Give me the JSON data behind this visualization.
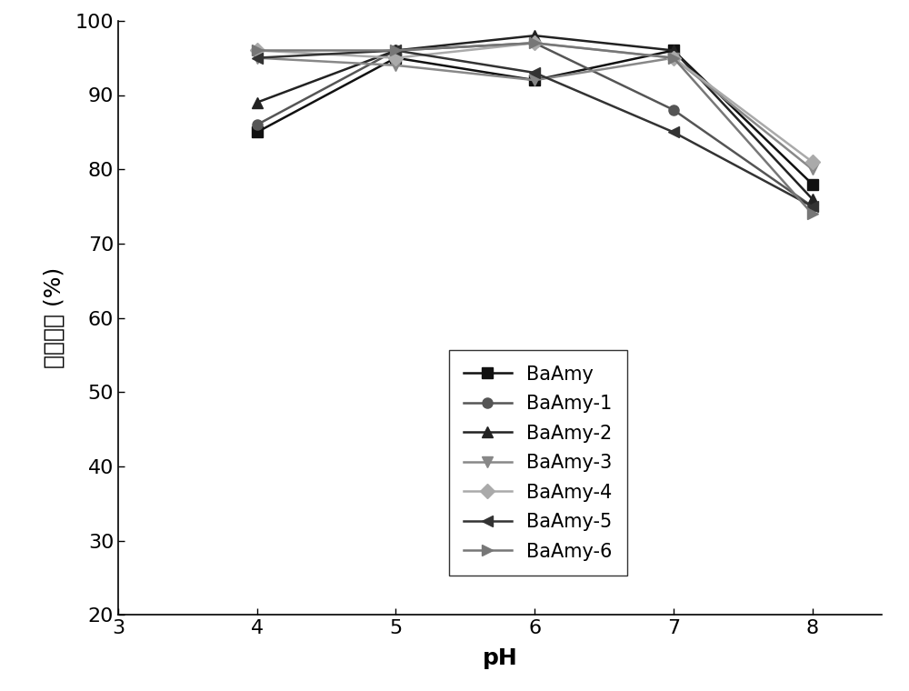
{
  "x": [
    4,
    5,
    6,
    7,
    8
  ],
  "series": {
    "BaAmy": [
      85,
      95,
      92,
      96,
      78
    ],
    "BaAmy-1": [
      86,
      96,
      97,
      88,
      75
    ],
    "BaAmy-2": [
      89,
      96,
      98,
      96,
      76
    ],
    "BaAmy-3": [
      95,
      94,
      92,
      95,
      80
    ],
    "BaAmy-4": [
      96,
      95,
      97,
      95,
      81
    ],
    "BaAmy-5": [
      95,
      96,
      93,
      85,
      75
    ],
    "BaAmy-6": [
      96,
      96,
      97,
      95,
      74
    ]
  },
  "markers": [
    "s",
    "o",
    "^",
    "v",
    "D",
    "<",
    ">"
  ],
  "colors": [
    "#111111",
    "#555555",
    "#222222",
    "#888888",
    "#aaaaaa",
    "#333333",
    "#777777"
  ],
  "xlabel": "pH",
  "ylabel": "相對酵活 (%)",
  "ylim": [
    20,
    100
  ],
  "yticks": [
    20,
    30,
    40,
    50,
    60,
    70,
    80,
    90,
    100
  ],
  "xlim": [
    3,
    8.5
  ],
  "xticks": [
    3,
    4,
    5,
    6,
    7,
    8
  ],
  "marker_size": 8,
  "linewidth": 1.8,
  "font_size": 18,
  "tick_font_size": 16,
  "legend_font_size": 15
}
